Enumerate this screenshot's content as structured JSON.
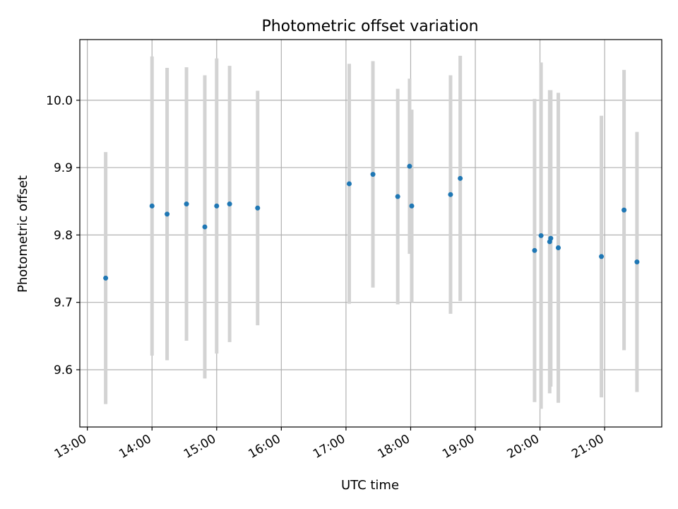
{
  "chart_data": {
    "type": "scatter",
    "title": "Photometric offset variation",
    "xlabel": "UTC time",
    "ylabel": "Photometric offset",
    "grid": true,
    "x_ticks": [
      "13:00",
      "14:00",
      "15:00",
      "16:00",
      "17:00",
      "18:00",
      "19:00",
      "20:00",
      "21:00"
    ],
    "y_ticks": [
      "9.6",
      "9.7",
      "9.8",
      "9.9",
      "10.0"
    ],
    "xlim": [
      "12:53",
      "21:53"
    ],
    "ylim": [
      9.515,
      10.09
    ],
    "colors": {
      "point": "#1f77b4",
      "errorbar": "#d3d3d3",
      "grid": "#b0b0b0"
    },
    "points": [
      {
        "x": "13:17",
        "y": 9.736,
        "err": 0.187
      },
      {
        "x": "14:00",
        "y": 9.843,
        "err": 0.222
      },
      {
        "x": "14:14",
        "y": 9.831,
        "err": 0.217
      },
      {
        "x": "14:32",
        "y": 9.846,
        "err": 0.203
      },
      {
        "x": "14:49",
        "y": 9.812,
        "err": 0.225
      },
      {
        "x": "15:00",
        "y": 9.843,
        "err": 0.219
      },
      {
        "x": "15:12",
        "y": 9.846,
        "err": 0.205
      },
      {
        "x": "15:38",
        "y": 9.84,
        "err": 0.174
      },
      {
        "x": "17:03",
        "y": 9.876,
        "err": 0.178
      },
      {
        "x": "17:25",
        "y": 9.89,
        "err": 0.168
      },
      {
        "x": "17:48",
        "y": 9.857,
        "err": 0.16
      },
      {
        "x": "17:59",
        "y": 9.902,
        "err": 0.13
      },
      {
        "x": "18:01",
        "y": 9.843,
        "err": 0.143
      },
      {
        "x": "18:37",
        "y": 9.86,
        "err": 0.177
      },
      {
        "x": "18:46",
        "y": 9.884,
        "err": 0.182
      },
      {
        "x": "19:55",
        "y": 9.777,
        "err": 0.225
      },
      {
        "x": "20:01",
        "y": 9.799,
        "err": 0.257
      },
      {
        "x": "20:09",
        "y": 9.79,
        "err": 0.225
      },
      {
        "x": "20:10",
        "y": 9.795,
        "err": 0.22
      },
      {
        "x": "20:17",
        "y": 9.781,
        "err": 0.23
      },
      {
        "x": "20:57",
        "y": 9.768,
        "err": 0.209
      },
      {
        "x": "21:18",
        "y": 9.837,
        "err": 0.208
      },
      {
        "x": "21:30",
        "y": 9.76,
        "err": 0.193
      }
    ]
  }
}
